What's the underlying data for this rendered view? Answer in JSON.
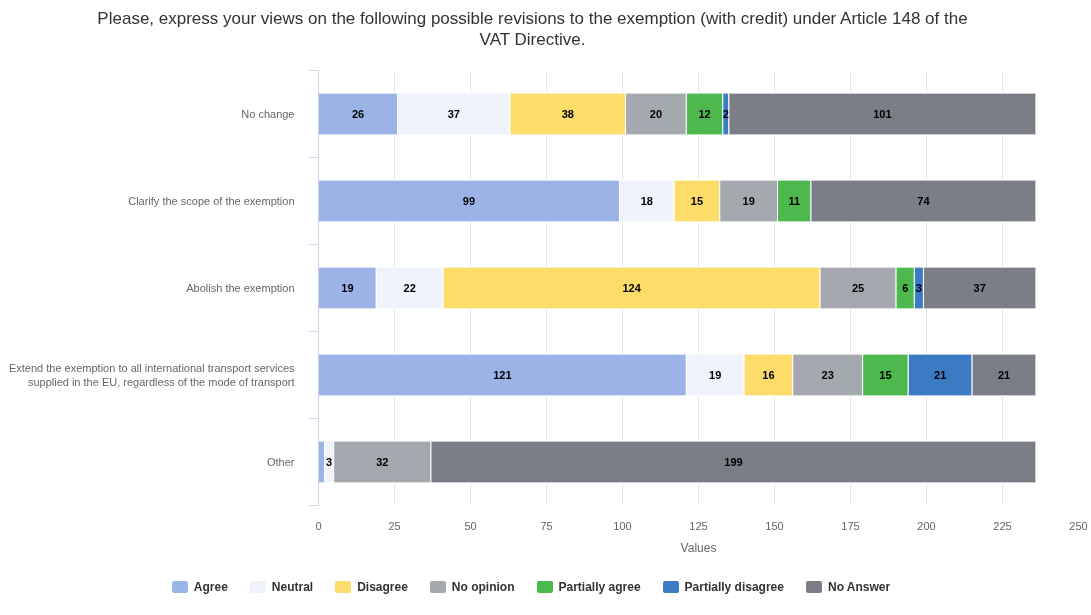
{
  "chart_data": {
    "type": "bar",
    "orientation": "horizontal",
    "stacked": true,
    "title": "Please, express your views on the following possible revisions to the exemption (with credit) under Article 148 of the VAT Directive.",
    "xlabel": "Values",
    "categories": [
      "No change",
      "Clarify the scope of the exemption",
      "Abolish the exemption",
      "Extend the exemption to all international transport services supplied in the EU, regardless of the mode of transport",
      "Other"
    ],
    "series": [
      {
        "name": "Agree",
        "color": "#9cb3e7",
        "values": [
          26,
          99,
          19,
          121,
          2
        ],
        "value_labels": [
          "26",
          "99",
          "19",
          "121",
          null
        ]
      },
      {
        "name": "Neutral",
        "color": "#eef3fc",
        "values": [
          37,
          18,
          22,
          19,
          3
        ],
        "value_labels": [
          "37",
          "18",
          "22",
          "19",
          "3"
        ]
      },
      {
        "name": "Disagree",
        "color": "#fddc6a",
        "values": [
          38,
          15,
          124,
          16,
          null
        ],
        "value_labels": [
          "38",
          "15",
          "124",
          "16",
          null
        ]
      },
      {
        "name": "No opinion",
        "color": "#a5a8ae",
        "values": [
          20,
          19,
          25,
          23,
          32
        ],
        "value_labels": [
          "20",
          "19",
          "25",
          "23",
          "32"
        ]
      },
      {
        "name": "Partially agree",
        "color": "#4db84d",
        "values": [
          12,
          11,
          6,
          15,
          null
        ],
        "value_labels": [
          "12",
          "11",
          "6",
          "15",
          null
        ]
      },
      {
        "name": "Partially disagree",
        "color": "#3b7bc3",
        "values": [
          2,
          null,
          3,
          21,
          null
        ],
        "value_labels": [
          "2",
          null,
          "3",
          "21",
          null
        ]
      },
      {
        "name": "No Answer",
        "color": "#7b7e86",
        "values": [
          101,
          74,
          37,
          21,
          199
        ],
        "value_labels": [
          "101",
          "74",
          "37",
          "21",
          "199"
        ]
      }
    ],
    "xlim": [
      0,
      250
    ],
    "xticks": [
      0,
      25,
      50,
      75,
      100,
      125,
      150,
      175,
      200,
      225,
      250
    ],
    "grid": "x",
    "legend": "bottom"
  }
}
